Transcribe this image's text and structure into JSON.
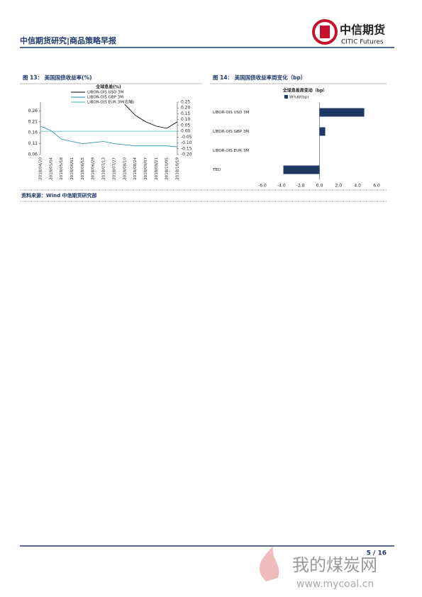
{
  "header": {
    "title": "中信期货研究|商品策略早报",
    "logo_cn": "中信期货",
    "logo_en": "CITIC Futures"
  },
  "chart_data": [
    {
      "type": "line",
      "caption": "图 13：  美国国债收益率(%)",
      "title": "全球息差(%)",
      "categories": [
        "2018/04/20",
        "2018/05/04",
        "2018/05/18",
        "2018/06/01",
        "2018/06/15",
        "2018/06/29",
        "2018/07/13",
        "2018/07/27",
        "2018/08/10",
        "2018/08/24",
        "2018/09/07",
        "2018/09/21",
        "2018/10/05",
        "2018/10/19"
      ],
      "series": [
        {
          "name": "LIBOR-OIS USD 3M",
          "color": "#000000",
          "values": [
            null,
            null,
            null,
            null,
            null,
            null,
            null,
            null,
            0.29,
            0.24,
            0.21,
            0.19,
            0.18,
            0.21
          ]
        },
        {
          "name": "LIBOR-OIS GBP 3M",
          "color": "#1f8fa0",
          "values": [
            0.19,
            0.17,
            0.13,
            0.12,
            0.11,
            0.115,
            0.12,
            0.11,
            0.105,
            0.1,
            0.1,
            0.1,
            0.1,
            0.095
          ]
        },
        {
          "name": "LIBOR-OIS EUR 3M(右轴)",
          "color": "#3cb8b0",
          "axis": "y2",
          "values": [
            0,
            0,
            0,
            0,
            0,
            0,
            0,
            0,
            0,
            0,
            0,
            0,
            0,
            0
          ]
        }
      ],
      "ylim": [
        0.06,
        0.3
      ],
      "yticks": [
        0.06,
        0.11,
        0.16,
        0.21,
        0.26
      ],
      "y2lim": [
        -0.2,
        0.25
      ],
      "y2ticks": [
        {
          "value": -0.2,
          "label": "-0.20"
        },
        -0.15,
        {
          "value": -0.1,
          "label": "-0.10"
        },
        -0.05,
        {
          "value": 0,
          "label": "0.00"
        },
        0.05,
        {
          "value": 0.1,
          "label": "0.10"
        },
        0.15,
        {
          "value": 0.2,
          "label": "0.20"
        },
        0.25
      ]
    },
    {
      "type": "hbar",
      "caption": "图 14：  美国国债收益率周变化（bp）",
      "title": "全球息差周变动（bp）",
      "categories": [
        "LIBOR-OIS USD 3M",
        "LIBOR-OIS GBP 3M",
        "LIBOR-OIS EUR 3M",
        "TED"
      ],
      "series": [
        {
          "name": "W%W(bp)",
          "color": "#1f3864",
          "values": [
            4.7,
            0.6,
            0,
            -3.8
          ]
        }
      ],
      "xlim": [
        -6,
        6
      ],
      "xticks": [
        {
          "value": -6,
          "label": "-6.0"
        },
        {
          "value": -4,
          "label": "-4.0"
        },
        {
          "value": -2,
          "label": "-2.0"
        },
        {
          "value": 0,
          "label": "0.0"
        },
        {
          "value": 2,
          "label": "2.0"
        },
        {
          "value": 4,
          "label": "4.0"
        },
        {
          "value": 6,
          "label": "6.0"
        }
      ]
    }
  ],
  "source": "资料来源：Wind  中信期货研究部",
  "page_number": "5 / 16",
  "watermark": {
    "name": "我的煤炭网",
    "url": "www.mycoal.cn"
  }
}
